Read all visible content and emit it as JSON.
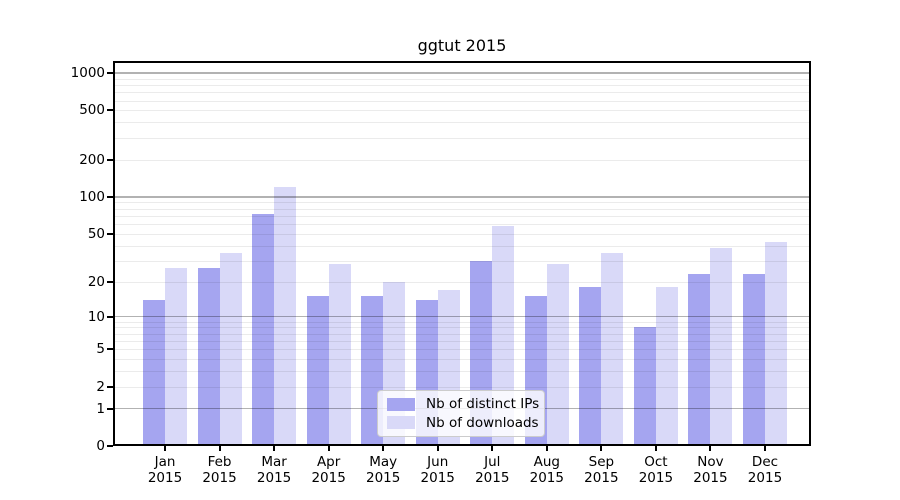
{
  "title": "ggtut 2015",
  "chart_data": {
    "type": "bar",
    "title": "ggtut 2015",
    "categories": [
      "Jan 2015",
      "Feb 2015",
      "Mar 2015",
      "Apr 2015",
      "May 2015",
      "Jun 2015",
      "Jul 2015",
      "Aug 2015",
      "Sep 2015",
      "Oct 2015",
      "Nov 2015",
      "Dec 2015"
    ],
    "x_tick_months": [
      "Jan",
      "Feb",
      "Mar",
      "Apr",
      "May",
      "Jun",
      "Jul",
      "Aug",
      "Sep",
      "Oct",
      "Nov",
      "Dec"
    ],
    "x_tick_year": "2015",
    "series": [
      {
        "name": "Nb of distinct IPs",
        "color": "#a5a5f0",
        "values": [
          14,
          26,
          72,
          15,
          15,
          14,
          30,
          15,
          18,
          8,
          23,
          23
        ]
      },
      {
        "name": "Nb of downloads",
        "color": "#d9d9f8",
        "values": [
          26,
          35,
          120,
          28,
          20,
          17,
          58,
          28,
          35,
          18,
          38,
          43
        ]
      }
    ],
    "yscale": "log1p",
    "yticks": [
      0,
      1,
      2,
      5,
      10,
      20,
      50,
      100,
      200,
      500,
      1000
    ],
    "ylim": [
      0,
      1270
    ],
    "grid": "on",
    "major_grid_values": [
      1,
      10,
      100,
      1000
    ],
    "legend_position": "lower center",
    "xlabel": "",
    "ylabel": ""
  }
}
